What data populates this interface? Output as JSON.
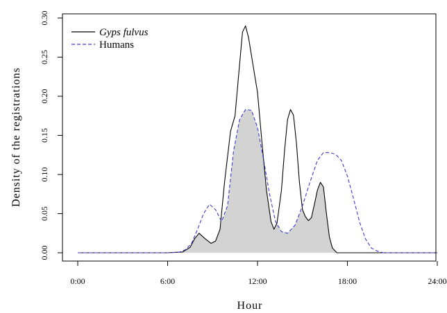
{
  "chart_data": {
    "type": "line",
    "title": "",
    "xlabel": "Hour",
    "ylabel": "Density of the registrations",
    "xlim": [
      0,
      24
    ],
    "ylim": [
      0,
      0.3
    ],
    "x_ticks": [
      0,
      6,
      12,
      18,
      24
    ],
    "x_tick_labels": [
      "0:00",
      "6:00",
      "12:00",
      "18:00",
      "24:00"
    ],
    "y_ticks": [
      0,
      0.05,
      0.1,
      0.15,
      0.2,
      0.25,
      0.3
    ],
    "y_tick_labels": [
      "0.00",
      "0.05",
      "0.10",
      "0.15",
      "0.20",
      "0.25",
      "0.30"
    ],
    "legend_position": "top-left",
    "overlap_fill_color": "#d3d3d3",
    "series": [
      {
        "name": "Gyps fulvus",
        "line_style": "solid",
        "color": "#000000",
        "x": [
          0,
          6,
          7.0,
          7.5,
          7.8,
          8.1,
          8.5,
          8.9,
          9.2,
          9.5,
          9.8,
          10.2,
          10.5,
          10.8,
          11.0,
          11.2,
          11.4,
          11.7,
          12.0,
          12.3,
          12.6,
          12.9,
          13.1,
          13.3,
          13.6,
          13.8,
          14.0,
          14.2,
          14.4,
          14.6,
          14.8,
          15.0,
          15.2,
          15.4,
          15.6,
          15.8,
          16.0,
          16.2,
          16.4,
          16.6,
          16.8,
          17.0,
          17.3,
          18,
          24
        ],
        "y": [
          0,
          0,
          0.001,
          0.007,
          0.018,
          0.025,
          0.018,
          0.012,
          0.015,
          0.03,
          0.09,
          0.155,
          0.175,
          0.24,
          0.282,
          0.29,
          0.275,
          0.24,
          0.205,
          0.14,
          0.08,
          0.04,
          0.03,
          0.038,
          0.08,
          0.13,
          0.17,
          0.183,
          0.176,
          0.14,
          0.09,
          0.055,
          0.046,
          0.041,
          0.045,
          0.062,
          0.08,
          0.09,
          0.084,
          0.05,
          0.02,
          0.006,
          0.0,
          0,
          0
        ]
      },
      {
        "name": "Humans",
        "line_style": "dashed",
        "color": "#3a3acd",
        "x": [
          0,
          6,
          6.8,
          7.2,
          7.6,
          8.0,
          8.4,
          8.8,
          9.2,
          9.6,
          10.0,
          10.4,
          10.8,
          11.2,
          11.6,
          12.0,
          12.4,
          12.8,
          13.2,
          13.6,
          14.0,
          14.5,
          15.0,
          15.5,
          16.0,
          16.4,
          16.8,
          17.2,
          17.6,
          18.0,
          18.4,
          18.8,
          19.2,
          19.6,
          20.0,
          20.4,
          20.8,
          24
        ],
        "y": [
          0,
          0,
          0.001,
          0.004,
          0.012,
          0.03,
          0.05,
          0.062,
          0.055,
          0.04,
          0.06,
          0.13,
          0.17,
          0.183,
          0.182,
          0.16,
          0.12,
          0.075,
          0.04,
          0.027,
          0.025,
          0.035,
          0.06,
          0.09,
          0.118,
          0.128,
          0.128,
          0.126,
          0.118,
          0.098,
          0.07,
          0.04,
          0.018,
          0.006,
          0.002,
          0.0,
          0.0,
          0
        ]
      }
    ]
  }
}
